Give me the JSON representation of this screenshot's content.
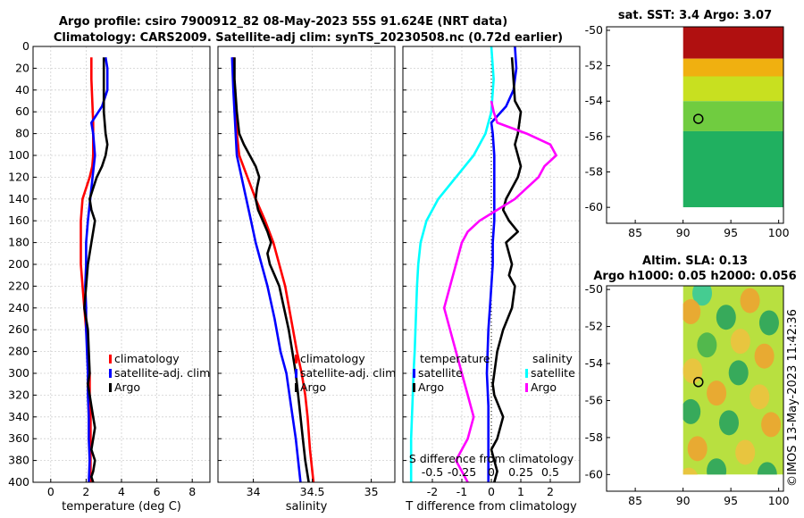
{
  "figure": {
    "title_line1": "Argo profile: csiro 7900912_82 08-May-2023 55S 91.624E (NRT data)",
    "title_line2": "Climatology: CARS2009. Satellite-adj clim: synTS_20230508.nc (0.72d earlier)",
    "watermark": "©IMOS 13-May-2023 11:42:36"
  },
  "colors": {
    "climatology": "#ff0000",
    "satellite": "#0000ff",
    "argo": "#000000",
    "salinity_satellite": "#00ffff",
    "salinity_argo": "#ff00ff",
    "grid": "#d0d0d0"
  },
  "chart_data": [
    {
      "type": "line",
      "id": "temperature",
      "xlabel": "temperature (deg C)",
      "xlim": [
        -1,
        9
      ],
      "xticks": [
        0,
        2,
        4,
        6,
        8
      ],
      "xtick_labels": [
        "0",
        "2",
        "4",
        "6",
        "8"
      ],
      "ylim": [
        400,
        0
      ],
      "yticks": [
        0,
        20,
        40,
        60,
        80,
        100,
        120,
        140,
        160,
        180,
        200,
        220,
        240,
        260,
        280,
        300,
        320,
        340,
        360,
        380,
        400
      ],
      "ytick_labels": [
        "0",
        "20",
        "40",
        "60",
        "80",
        "100",
        "120",
        "140",
        "160",
        "180",
        "200",
        "220",
        "240",
        "260",
        "280",
        "300",
        "320",
        "340",
        "360",
        "380",
        "400"
      ],
      "legend": [
        "climatology",
        "satellite-adj. clim",
        "Argo"
      ],
      "legend_position": "right",
      "series": [
        {
          "name": "climatology",
          "color": "#ff0000",
          "x": [
            2.3,
            2.3,
            2.35,
            2.4,
            2.4,
            2.4,
            2.35,
            2.2,
            2.0,
            1.8,
            1.7,
            1.7,
            1.7,
            1.8,
            1.9,
            2.0,
            2.1,
            2.2,
            2.2,
            2.25,
            2.25,
            2.25
          ],
          "y": [
            10,
            30,
            50,
            70,
            80,
            100,
            110,
            120,
            130,
            140,
            160,
            180,
            200,
            220,
            240,
            260,
            280,
            300,
            320,
            340,
            370,
            400
          ]
        },
        {
          "name": "satellite-adj. clim",
          "color": "#0000ff",
          "x": [
            3.1,
            3.2,
            3.2,
            2.9,
            2.3,
            2.4,
            2.5,
            2.3,
            2.1,
            2.0,
            2.0,
            1.95,
            2.0,
            2.0,
            2.05,
            2.1,
            2.1,
            2.15,
            2.15,
            2.2,
            2.15
          ],
          "y": [
            10,
            20,
            40,
            55,
            70,
            80,
            100,
            130,
            160,
            180,
            200,
            220,
            240,
            260,
            280,
            300,
            320,
            340,
            360,
            380,
            400
          ]
        },
        {
          "name": "Argo",
          "color": "#000000",
          "x": [
            3.0,
            3.0,
            3.0,
            3.1,
            3.2,
            3.1,
            2.9,
            2.6,
            2.4,
            2.2,
            2.3,
            2.5,
            2.4,
            2.3,
            2.1,
            2.0,
            1.9,
            2.0,
            2.1,
            2.15,
            2.2,
            2.1,
            2.2,
            2.3,
            2.4,
            2.5,
            2.4,
            2.3,
            2.5,
            2.4,
            2.3,
            2.4
          ],
          "y": [
            10,
            30,
            60,
            80,
            90,
            100,
            110,
            120,
            130,
            140,
            150,
            160,
            170,
            180,
            200,
            220,
            240,
            250,
            260,
            280,
            300,
            310,
            320,
            330,
            340,
            350,
            360,
            370,
            380,
            390,
            395,
            400
          ]
        }
      ]
    },
    {
      "type": "line",
      "id": "salinity",
      "xlabel": "salinity",
      "xlim": [
        33.7,
        35.2
      ],
      "xticks": [
        34,
        34.5,
        35
      ],
      "xtick_labels": [
        "34",
        "34.5",
        "35"
      ],
      "ylim": [
        400,
        0
      ],
      "legend": [
        "climatology",
        "satellite-adj. clim",
        "Argo"
      ],
      "legend_position": "right",
      "series": [
        {
          "name": "climatology",
          "color": "#ff0000",
          "x": [
            33.83,
            33.84,
            33.85,
            33.86,
            33.88,
            33.95,
            34.02,
            34.1,
            34.17,
            34.22,
            34.27,
            34.32,
            34.37,
            34.41,
            34.44,
            34.46,
            34.48,
            34.51
          ],
          "y": [
            10,
            40,
            60,
            80,
            100,
            120,
            140,
            160,
            180,
            200,
            220,
            250,
            280,
            300,
            320,
            340,
            370,
            400
          ]
        },
        {
          "name": "satellite-adj. clim",
          "color": "#0000ff",
          "x": [
            33.82,
            33.83,
            33.84,
            33.85,
            33.86,
            33.9,
            33.94,
            33.98,
            34.02,
            34.07,
            34.12,
            34.18,
            34.23,
            34.28,
            34.32,
            34.36,
            34.4
          ],
          "y": [
            10,
            40,
            60,
            80,
            100,
            120,
            140,
            160,
            180,
            200,
            220,
            250,
            280,
            300,
            330,
            360,
            400
          ]
        },
        {
          "name": "Argo",
          "color": "#000000",
          "x": [
            33.84,
            33.84,
            33.86,
            33.88,
            33.92,
            33.97,
            34.02,
            34.05,
            34.03,
            34.02,
            34.04,
            34.08,
            34.12,
            34.15,
            34.12,
            34.14,
            34.18,
            34.22,
            34.26,
            34.3,
            34.33,
            34.36,
            34.39,
            34.42,
            34.44,
            34.47
          ],
          "y": [
            10,
            30,
            60,
            80,
            90,
            100,
            110,
            120,
            130,
            140,
            150,
            160,
            170,
            180,
            190,
            200,
            210,
            220,
            240,
            260,
            280,
            300,
            330,
            360,
            380,
            400
          ]
        }
      ]
    },
    {
      "type": "line",
      "id": "differences",
      "xlabel": "T difference from climatology",
      "xlim": [
        -3,
        3
      ],
      "xticks": [
        -2,
        -1,
        0,
        1,
        2
      ],
      "xtick_labels": [
        "-2",
        "-1",
        "0",
        "1",
        "2"
      ],
      "top_axis_label": "S difference from climatology",
      "top_xticks": [
        -0.5,
        -0.25,
        0,
        0.25,
        0.5
      ],
      "top_xtick_labels": [
        "-0.5",
        "-0.25",
        "0",
        "0.25",
        "0.5"
      ],
      "ylim": [
        400,
        0
      ],
      "legend_temperature_title": "temperature",
      "legend_salinity_title": "salinity",
      "legend_temperature": [
        "satellite",
        "Argo"
      ],
      "legend_salinity": [
        "satellite",
        "Argo"
      ],
      "series": [
        {
          "name": "T satellite",
          "color": "#0000ff",
          "x": [
            0.8,
            0.85,
            0.75,
            0.5,
            0.0,
            0.05,
            0.1,
            0.1,
            0.1,
            0.1,
            0.05,
            0.05,
            0.0,
            -0.05,
            -0.1,
            -0.15,
            -0.1,
            -0.1,
            -0.1
          ],
          "y": [
            0,
            20,
            40,
            55,
            70,
            80,
            100,
            120,
            140,
            160,
            180,
            200,
            220,
            240,
            260,
            300,
            330,
            360,
            400
          ]
        },
        {
          "name": "T Argo",
          "color": "#000000",
          "x": [
            0.7,
            0.75,
            0.8,
            1.0,
            0.9,
            0.8,
            0.9,
            1.0,
            0.9,
            0.7,
            0.5,
            0.4,
            0.6,
            0.9,
            0.5,
            0.7,
            0.6,
            0.8,
            0.7,
            0.4,
            0.2,
            0.1,
            0.05,
            0.1,
            0.4,
            0.2,
            0.0,
            0.1,
            0.2,
            0.1
          ],
          "y": [
            10,
            30,
            50,
            60,
            80,
            90,
            100,
            110,
            120,
            130,
            140,
            150,
            160,
            170,
            180,
            200,
            210,
            220,
            240,
            260,
            280,
            300,
            310,
            320,
            340,
            360,
            370,
            380,
            390,
            400
          ]
        },
        {
          "name": "S satellite",
          "color": "#00ffff",
          "x": [
            0.0,
            0.02,
            0.0,
            -0.05,
            -0.15,
            -0.3,
            -0.45,
            -0.55,
            -0.6,
            -0.62,
            -0.63,
            -0.64,
            -0.65,
            -0.66,
            -0.67,
            -0.68,
            -0.68
          ],
          "y": [
            0,
            30,
            60,
            80,
            100,
            120,
            140,
            160,
            180,
            200,
            220,
            250,
            280,
            300,
            330,
            360,
            400
          ]
        },
        {
          "name": "S Argo",
          "color": "#ff00ff",
          "x": [
            0.0,
            0.02,
            0.05,
            0.3,
            0.5,
            0.55,
            0.45,
            0.4,
            0.3,
            0.2,
            0.05,
            -0.1,
            -0.2,
            -0.25,
            -0.3,
            -0.35,
            -0.4,
            -0.35,
            -0.3,
            -0.25,
            -0.2,
            -0.15,
            -0.2,
            -0.3,
            -0.25,
            -0.2
          ],
          "y": [
            50,
            60,
            70,
            80,
            90,
            100,
            110,
            120,
            130,
            140,
            150,
            160,
            170,
            180,
            200,
            220,
            240,
            260,
            280,
            300,
            320,
            340,
            360,
            380,
            390,
            400
          ]
        }
      ]
    },
    {
      "type": "heatmap",
      "id": "sst-map",
      "title": "sat. SST: 3.4 Argo: 3.07",
      "xlim": [
        82,
        100.5
      ],
      "ylim": [
        -60.9,
        -49.8
      ],
      "xticks": [
        85,
        90,
        95,
        100
      ],
      "xtick_labels": [
        "85",
        "90",
        "95",
        "100"
      ],
      "yticks": [
        -50,
        -52,
        -54,
        -56,
        -58,
        -60
      ],
      "ytick_labels": [
        "-50",
        "-52",
        "-54",
        "-56",
        "-58",
        "-60"
      ],
      "float_position": {
        "lon": 91.6,
        "lat": -55.0
      },
      "bands": [
        {
          "lat_from": -49.8,
          "lat_to": -51.6,
          "color": "#b01010"
        },
        {
          "lat_from": -51.6,
          "lat_to": -52.6,
          "color": "#f0b010"
        },
        {
          "lat_from": -52.6,
          "lat_to": -54.0,
          "color": "#c8e020"
        },
        {
          "lat_from": -54.0,
          "lat_to": -55.7,
          "color": "#70cc40"
        },
        {
          "lat_from": -55.7,
          "lat_to": -60.0,
          "color": "#20b060"
        }
      ]
    },
    {
      "type": "heatmap",
      "id": "sla-map",
      "title_line1": "Altim. SLA: 0.13",
      "title_line2": "Argo h1000: 0.05 h2000: 0.056",
      "xlim": [
        82,
        100.5
      ],
      "ylim": [
        -60.9,
        -49.8
      ],
      "xticks": [
        85,
        90,
        95,
        100
      ],
      "xtick_labels": [
        "85",
        "90",
        "95",
        "100"
      ],
      "yticks": [
        -50,
        -52,
        -54,
        -56,
        -58,
        -60
      ],
      "ytick_labels": [
        "-50",
        "-52",
        "-54",
        "-56",
        "-58",
        "-60"
      ],
      "float_position": {
        "lon": 91.6,
        "lat": -55.0
      },
      "base_color": "#b8e040",
      "blobs": [
        {
          "lon": 92.0,
          "lat": -50.2,
          "c": "#30c8a0"
        },
        {
          "lon": 97.0,
          "lat": -50.6,
          "c": "#f0a030"
        },
        {
          "lon": 90.8,
          "lat": -51.2,
          "c": "#f0a030"
        },
        {
          "lon": 94.5,
          "lat": -51.5,
          "c": "#20a060"
        },
        {
          "lon": 99.0,
          "lat": -51.8,
          "c": "#20a060"
        },
        {
          "lon": 92.5,
          "lat": -53.0,
          "c": "#40b050"
        },
        {
          "lon": 96.0,
          "lat": -52.8,
          "c": "#f0c040"
        },
        {
          "lon": 98.5,
          "lat": -53.6,
          "c": "#f0a030"
        },
        {
          "lon": 91.0,
          "lat": -54.4,
          "c": "#f0c040"
        },
        {
          "lon": 95.8,
          "lat": -54.5,
          "c": "#20a060"
        },
        {
          "lon": 93.5,
          "lat": -55.6,
          "c": "#f0a030"
        },
        {
          "lon": 98.0,
          "lat": -55.8,
          "c": "#f0c040"
        },
        {
          "lon": 90.8,
          "lat": -56.6,
          "c": "#20a060"
        },
        {
          "lon": 94.8,
          "lat": -57.2,
          "c": "#20a060"
        },
        {
          "lon": 99.2,
          "lat": -57.3,
          "c": "#f0a030"
        },
        {
          "lon": 91.5,
          "lat": -58.6,
          "c": "#f0a030"
        },
        {
          "lon": 96.5,
          "lat": -58.8,
          "c": "#f0c040"
        },
        {
          "lon": 93.5,
          "lat": -59.8,
          "c": "#20a060"
        },
        {
          "lon": 98.8,
          "lat": -60.0,
          "c": "#20a060"
        },
        {
          "lon": 90.6,
          "lat": -60.3,
          "c": "#f0c040"
        }
      ]
    }
  ]
}
